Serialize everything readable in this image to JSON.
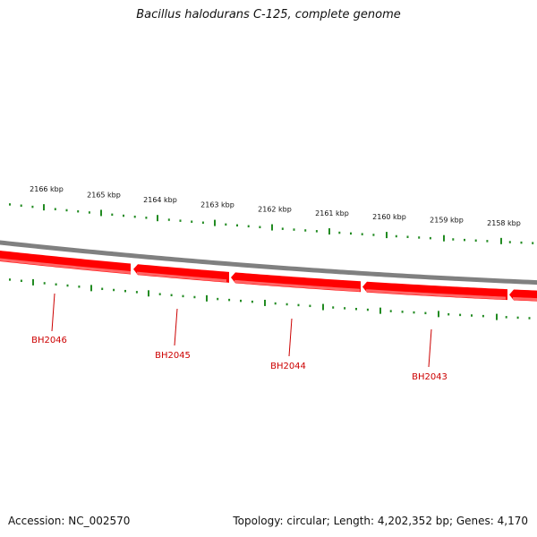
{
  "title": "Bacillus halodurans C-125, complete genome",
  "footer": {
    "accession": "Accession: NC_002570",
    "summary": "Topology: circular; Length: 4,202,352 bp; Genes: 4,170"
  },
  "colors": {
    "backbone": "#808080",
    "gene": "#ff0000",
    "gene_highlight": "#ff6666",
    "tick": "#228b22",
    "label": "#cc0000"
  },
  "scale": {
    "unit": "kbp",
    "ticks": [
      {
        "kbp": 2166,
        "label": "2166 kbp"
      },
      {
        "kbp": 2165,
        "label": "2165 kbp"
      },
      {
        "kbp": 2164,
        "label": "2164 kbp"
      },
      {
        "kbp": 2163,
        "label": "2163 kbp"
      },
      {
        "kbp": 2162,
        "label": "2162 kbp"
      },
      {
        "kbp": 2161,
        "label": "2161 kbp"
      },
      {
        "kbp": 2160,
        "label": "2160 kbp"
      },
      {
        "kbp": 2159,
        "label": "2159 kbp"
      },
      {
        "kbp": 2158,
        "label": "2158 kbp"
      }
    ]
  },
  "genes": [
    {
      "name": "BH2046",
      "strand": "minus"
    },
    {
      "name": "BH2045",
      "strand": "minus"
    },
    {
      "name": "BH2044",
      "strand": "minus"
    },
    {
      "name": "BH2043",
      "strand": "minus"
    }
  ]
}
